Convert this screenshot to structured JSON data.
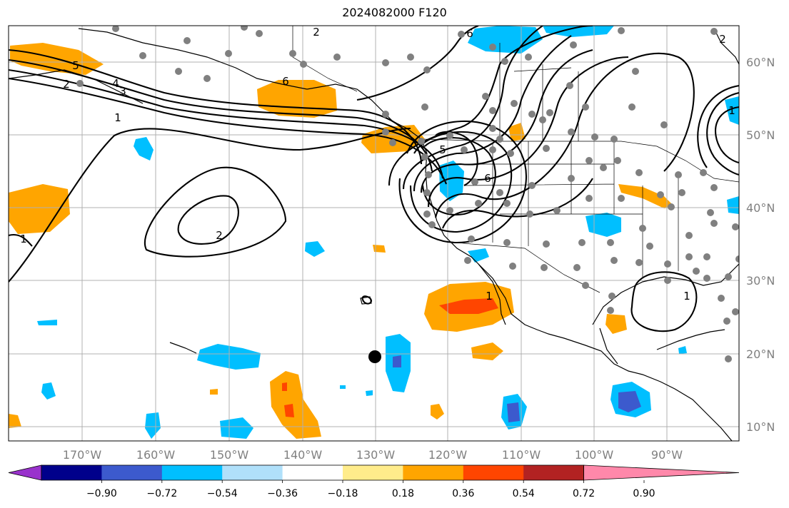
{
  "title": "2024082000 F120",
  "longitude_labels": [
    "170°W",
    "160°W",
    "150°W",
    "140°W",
    "130°W",
    "120°W",
    "110°W",
    "100°W",
    "90°W"
  ],
  "latitude_labels": [
    "60°N",
    "50°N",
    "40°N",
    "30°N",
    "20°N",
    "10°N"
  ],
  "colorbar": {
    "tick_labels": [
      "−0.90",
      "−0.72",
      "−0.54",
      "−0.36",
      "−0.18",
      "0.18",
      "0.36",
      "0.54",
      "0.72",
      "0.90"
    ],
    "colors": [
      "#9932cc",
      "#00008b",
      "#3c5acd",
      "#00bfff",
      "#b0e0fa",
      "#ffffff",
      "#ffec8b",
      "#ffa500",
      "#ff4500",
      "#b22222",
      "#ff88aa"
    ]
  },
  "contour_labels": [
    "5",
    "2",
    "4",
    "3",
    "1",
    "6",
    "1",
    "2",
    "1",
    "1",
    "5",
    "6",
    "6",
    "2",
    "1",
    "2"
  ],
  "marker": {
    "type": "black-dot",
    "lon": -130,
    "lat": 19.6
  },
  "colors": {
    "contour": "#000000",
    "coast": "#000000",
    "station": "#808080",
    "grid": "#b0b0b0"
  }
}
